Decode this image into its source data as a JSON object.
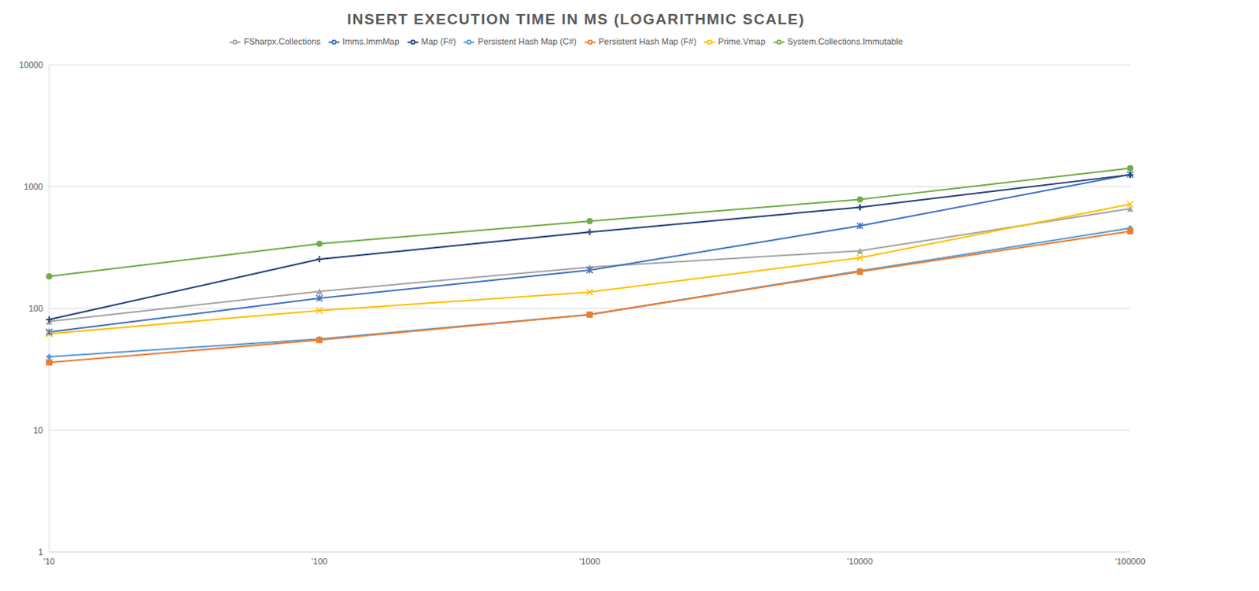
{
  "chart_data": {
    "type": "line",
    "title": "INSERT EXECUTION TIME IN MS (LOGARITHMIC SCALE)",
    "categories": [
      "'10",
      "'100",
      "'1000",
      "'10000",
      "'100000"
    ],
    "log": "y",
    "ylim": [
      1,
      10000
    ],
    "yticks": [
      1,
      10,
      100,
      1000,
      10000
    ],
    "grid": true,
    "legend": "top",
    "series": [
      {
        "name": "Persistent Hash Map (C#)",
        "color": "#5b9bd5",
        "marker": "diamond",
        "values": [
          40,
          56,
          89,
          203,
          455
        ]
      },
      {
        "name": "Persistent Hash Map (F#)",
        "color": "#ed7d31",
        "marker": "square",
        "values": [
          36,
          55,
          89,
          200,
          430
        ]
      },
      {
        "name": "FSharpx.Collections",
        "color": "#a5a5a5",
        "marker": "triangle",
        "values": [
          78,
          138,
          218,
          297,
          658
        ]
      },
      {
        "name": "Prime.Vmap",
        "color": "#ffc000",
        "marker": "x",
        "values": [
          62,
          96,
          136,
          260,
          718
        ]
      },
      {
        "name": "Imms.ImmMap",
        "color": "#4472c4",
        "marker": "star",
        "values": [
          64,
          121,
          206,
          476,
          1256
        ]
      },
      {
        "name": "System.Collections.Immutable",
        "color": "#70ad47",
        "marker": "circle",
        "values": [
          183,
          339,
          520,
          785,
          1413
        ]
      },
      {
        "name": "Map (F#)",
        "color": "#264478",
        "marker": "plus",
        "values": [
          81,
          253,
          423,
          677,
          1250
        ]
      }
    ]
  }
}
